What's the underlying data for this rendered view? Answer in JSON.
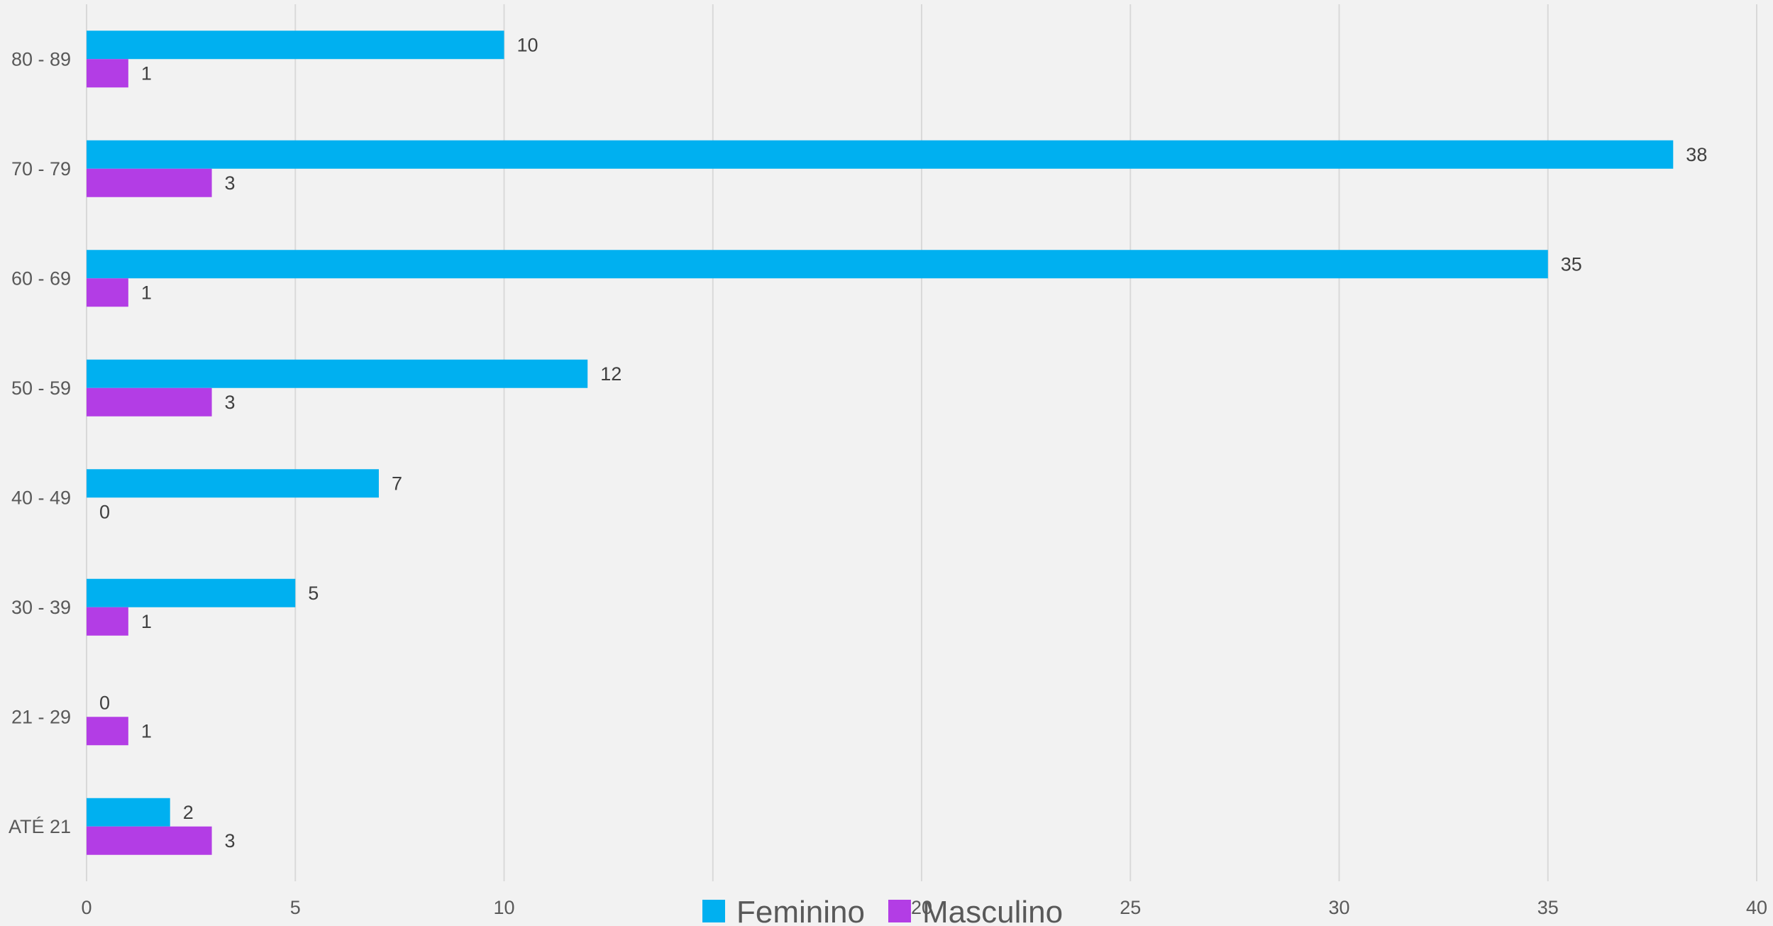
{
  "chart_data": {
    "type": "bar",
    "orientation": "horizontal",
    "categories": [
      "ATÉ 21",
      "21 - 29",
      "30 - 39",
      "40 - 49",
      "50 - 59",
      "60 - 69",
      "70 - 79",
      "80 - 89"
    ],
    "series": [
      {
        "name": "Feminino",
        "color": "#00b0f0",
        "values": [
          2,
          0,
          5,
          7,
          12,
          35,
          38,
          10
        ]
      },
      {
        "name": "Masculino",
        "color": "#b33de5",
        "values": [
          3,
          1,
          1,
          0,
          3,
          1,
          3,
          1
        ]
      }
    ],
    "xlim": [
      0,
      40
    ],
    "x_ticks": [
      "0",
      "5",
      "10",
      "15",
      "20",
      "25",
      "30",
      "35",
      "40"
    ],
    "grid": true,
    "legend_position": "bottom",
    "data_labels": true
  }
}
